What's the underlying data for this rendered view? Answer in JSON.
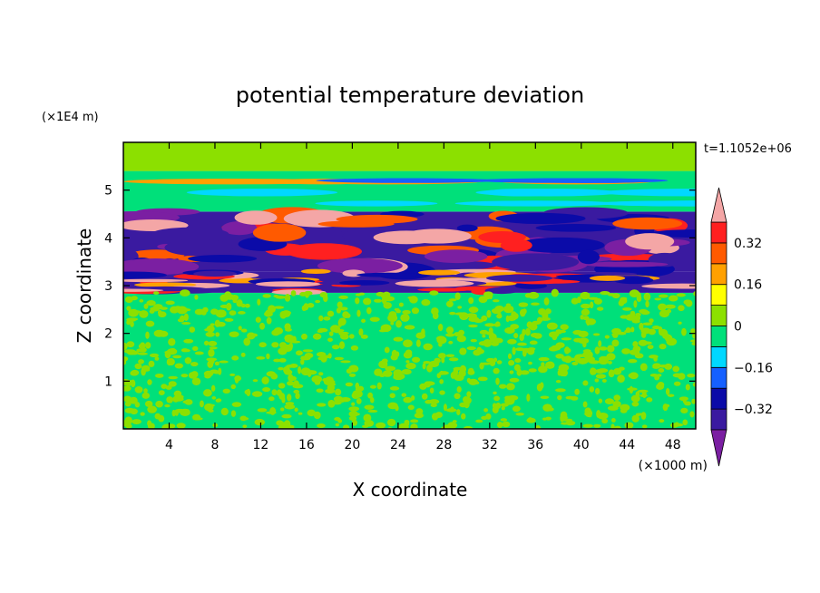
{
  "chart_data": {
    "type": "heatmap",
    "title": "potential temperature deviation",
    "xlabel": "X coordinate",
    "ylabel": "Z coordinate",
    "x_unit": "(×1000 m)",
    "y_unit": "(×1E4 m)",
    "time_label": "t=1.1052e+06",
    "xlim": [
      0,
      50
    ],
    "ylim": [
      0,
      6
    ],
    "x_ticks": [
      "4",
      "8",
      "12",
      "16",
      "20",
      "24",
      "28",
      "32",
      "36",
      "40",
      "44",
      "48"
    ],
    "y_ticks": [
      "1",
      "2",
      "3",
      "4",
      "5"
    ],
    "x_tick_values": [
      4,
      8,
      12,
      16,
      20,
      24,
      28,
      32,
      36,
      40,
      44,
      48
    ],
    "y_tick_values": [
      1,
      2,
      3,
      4,
      5
    ],
    "colorbar": {
      "labels": [
        "0.32",
        "0.16",
        "0",
        "−0.16",
        "−0.32"
      ],
      "label_values": [
        0.32,
        0.16,
        0,
        -0.16,
        -0.32
      ],
      "levels": [
        -0.4,
        -0.32,
        -0.24,
        -0.16,
        -0.08,
        0,
        0.08,
        0.16,
        0.24,
        0.32,
        0.4
      ],
      "colors": [
        "#7b1fa2",
        "#3a1aa0",
        "#0b0ba8",
        "#1560ff",
        "#00d8ff",
        "#00e07a",
        "#8ce000",
        "#ffff00",
        "#ffa000",
        "#ff5a00",
        "#ff2020",
        "#f4a6a6"
      ],
      "extend": "both"
    },
    "layers": [
      {
        "z_range": [
          0,
          2.85
        ],
        "pattern": "fine speckle",
        "colors": [
          "#00e07a",
          "#8ce000"
        ]
      },
      {
        "z_range": [
          2.85,
          3.3
        ],
        "pattern": "thin layered bands",
        "colors": [
          "#3a1aa0",
          "#ff2020",
          "#ffa000",
          "#f4a6a6",
          "#0b0ba8"
        ]
      },
      {
        "z_range": [
          3.3,
          4.55
        ],
        "pattern": "large turbulent eddies",
        "colors": [
          "#3a1aa0",
          "#7b1fa2",
          "#ff2020",
          "#ff5a00",
          "#f4a6a6",
          "#0b0ba8"
        ]
      },
      {
        "z_range": [
          4.55,
          5.4
        ],
        "pattern": "horizontal bands",
        "colors": [
          "#00e07a",
          "#00d8ff",
          "#1560ff",
          "#ffa000"
        ]
      },
      {
        "z_range": [
          5.4,
          6.0
        ],
        "pattern": "uniform",
        "colors": [
          "#8ce000",
          "#00e07a"
        ]
      }
    ]
  }
}
